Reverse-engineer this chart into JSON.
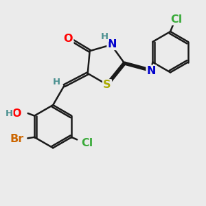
{
  "bg_color": "#ebebeb",
  "bond_color": "#1a1a1a",
  "bond_width": 1.8,
  "dbo": 0.055,
  "atom_colors": {
    "O": "#ff0000",
    "N": "#0000cc",
    "S": "#aaaa00",
    "H": "#4a9090",
    "Br": "#cc6600",
    "Cl": "#3aaa3a"
  },
  "fs": 11.5,
  "fs_s": 9.5
}
